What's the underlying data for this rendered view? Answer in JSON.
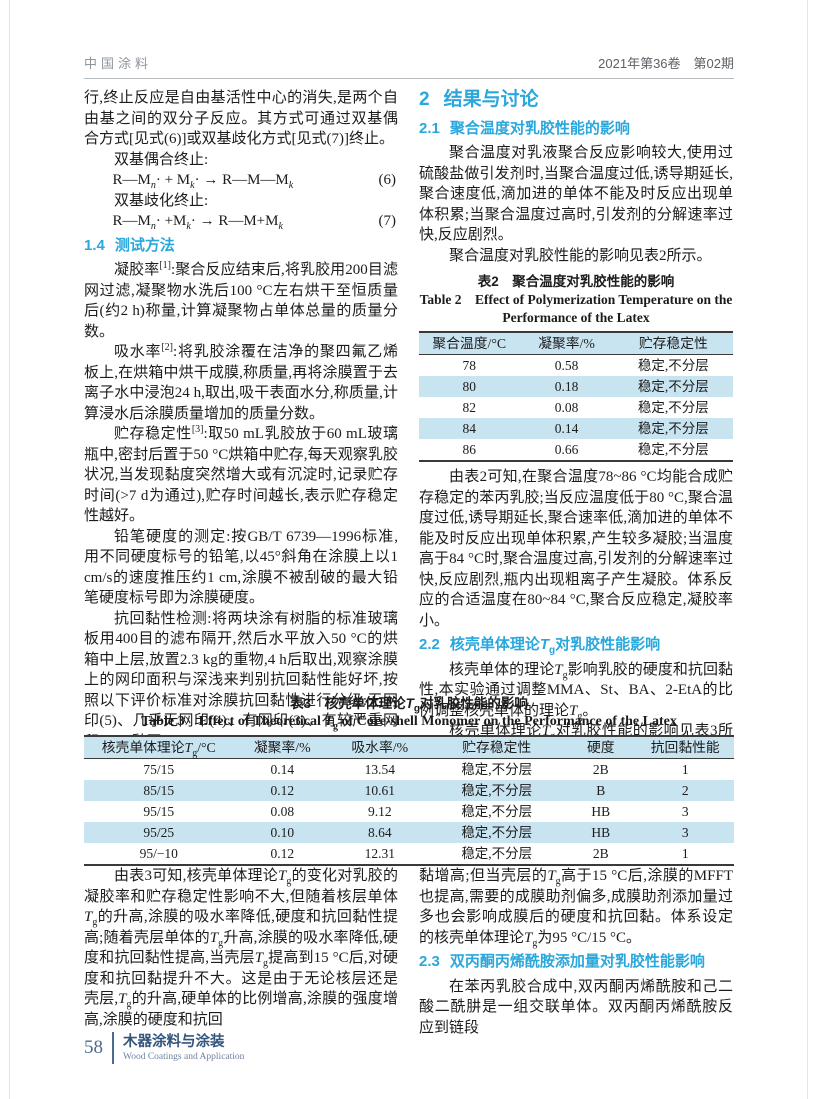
{
  "header": {
    "journal": "中国涂料",
    "issue": "2021年第36卷　第02期"
  },
  "left": {
    "p_cont": "行,终止反应是自由基活性中心的消失,是两个自由基之间的双分子反应。其方式可通过双基偶合方式[见式(6)]或双基歧化方式[见式(7)]终止。",
    "coupling_label": "双基偶合终止:",
    "eq6_body": "R—M<sub><i>n</i></sub>· + M<sub><i>k</i></sub>· → R—M—M<sub><i>k</i></sub>",
    "eq6_num": "(6)",
    "disprop_label": "双基歧化终止:",
    "eq7_body": "R—M<sub><i>n</i></sub>· +M<sub><i>k</i></sub>· → R—M+M<sub><i>k</i></sub>",
    "eq7_num": "(7)",
    "h_14_no": "1.4",
    "h_14": "测试方法",
    "p_gel": "凝胶率<sup>[1]</sup>:聚合反应结束后,将乳胶用200目滤网过滤,凝聚物水洗后100 °C左右烘干至恒质量后(约2 h)称量,计算凝聚物占单体总量的质量分数。",
    "p_water": "吸水率<sup>[2]</sup>:将乳胶涂覆在洁净的聚四氟乙烯板上,在烘箱中烘干成膜,称质量,再将涂膜置于去离子水中浸泡24 h,取出,吸干表面水分,称质量,计算浸水后涂膜质量增加的质量分数。",
    "p_storage": "贮存稳定性<sup>[3]</sup>:取50 mL乳胶放于60 mL玻璃瓶中,密封后置于50 °C烘箱中贮存,每天观察乳胶状况,当发现黏度突然增大或有沉淀时,记录贮存时间(&gt;7 d为通过),贮存时间越长,表示贮存稳定性越好。",
    "p_pencil": "铅笔硬度的测定:按GB/T 6739—1996标准,用不同硬度标号的铅笔,以45°斜角在涂膜上以1 cm/s的速度推压约1 cm,涂膜不被刮破的最大铅笔硬度标号即为涂膜硬度。",
    "p_antiblock": "抗回黏性检测:将两块涂有树脂的标准玻璃板用400目的滤布隔开,然后水平放入50 °C的烘箱中上层,放置2.3 kg的重物,4 h后取出,观察涂膜上的网印面积与深浅来判别抗回黏性能好坏,按照以下评价标准对涂膜抗回黏性进行分级:无网印(5)、几乎无网印(4)、有网印(3)、有较严重网印(2)、黏网(1)。"
  },
  "right": {
    "h2_no": "2",
    "h2": "结果与讨论",
    "h_21_no": "2.1",
    "h_21": "聚合温度对乳胶性能的影响",
    "p_21a": "聚合温度对乳液聚合反应影响较大,使用过硫酸盐做引发剂时,当聚合温度过低,诱导期延长,聚合速度低,滴加进的单体不能及时反应出现单体积累;当聚合温度过高时,引发剂的分解速率过快,反应剧烈。",
    "p_21b": "聚合温度对乳胶性能的影响见表2所示。",
    "p_21c": "由表2可知,在聚合温度78~86 °C均能合成贮存稳定的苯丙乳胶;当反应温度低于80 °C,聚合温度过低,诱导期延长,聚合速率低,滴加进的单体不能及时反应出现单体积累,产生较多凝胶;当温度高于84 °C时,聚合温度过高,引发剂的分解速率过快,反应剧烈,瓶内出现粗离子产生凝胶。体系反应的合适温度在80~84 °C,聚合反应稳定,凝胶率小。",
    "h_22_no": "2.2",
    "h_22": "核壳单体理论<i>T</i><sub>g</sub>对乳胶性能影响",
    "p_22a": "核壳单体的理论<i>T</i><sub>g</sub>影响乳胶的硬度和抗回黏性,本实验通过调整MMA、St、BA、2-EtA的比例调整核壳单体的理论<i>T</i><sub>g</sub>。",
    "p_22b": "核壳单体理论<i>T</i><sub>g</sub>对乳胶性能的影响见表3所示。"
  },
  "table2": {
    "title_cn": "表2　聚合温度对乳胶性能的影响",
    "title_en_1": "Table 2　Effect of Polymerization Temperature on the",
    "title_en_2": "Performance of the Latex",
    "headers": [
      "聚合温度/°C",
      "凝聚率/%",
      "贮存稳定性"
    ],
    "rows": [
      [
        "78",
        "0.58",
        "稳定,不分层"
      ],
      [
        "80",
        "0.18",
        "稳定,不分层"
      ],
      [
        "82",
        "0.08",
        "稳定,不分层"
      ],
      [
        "84",
        "0.14",
        "稳定,不分层"
      ],
      [
        "86",
        "0.66",
        "稳定,不分层"
      ]
    ]
  },
  "table3": {
    "title_cn": "表3　核壳单体理论<i>T</i><sub>g</sub>对乳胶性能的影响",
    "title_en": "Table 3　Effect of Theoretical <i>T</i><sub>g</sub> of Core-shell Monomer on the Performance of the Latex",
    "header_0": "核壳单体理论<i>T</i><sub>g</sub>/°C",
    "headers_rest": [
      "凝聚率/%",
      "吸水率/%",
      "贮存稳定性",
      "硬度",
      "抗回黏性能"
    ],
    "rows": [
      [
        "75/15",
        "0.14",
        "13.54",
        "稳定,不分层",
        "2B",
        "1"
      ],
      [
        "85/15",
        "0.12",
        "10.61",
        "稳定,不分层",
        "B",
        "2"
      ],
      [
        "95/15",
        "0.08",
        "9.12",
        "稳定,不分层",
        "HB",
        "3"
      ],
      [
        "95/25",
        "0.10",
        "8.64",
        "稳定,不分层",
        "HB",
        "3"
      ],
      [
        "95/−10",
        "0.12",
        "12.31",
        "稳定,不分层",
        "2B",
        "1"
      ]
    ]
  },
  "bottom": {
    "p_left": "由表3可知,核壳单体理论<i>T</i><sub>g</sub>的变化对乳胶的凝胶率和贮存稳定性影响不大,但随着核层单体<i>T</i><sub>g</sub>的升高,涂膜的吸水率降低,硬度和抗回黏性提高;随着壳层单体的<i>T</i><sub>g</sub>升高,涂膜的吸水率降低,硬度和抗回黏性提高,当壳层<i>T</i><sub>g</sub>提高到15 °C后,对硬度和抗回黏提升不大。这是由于无论核层还是壳层,<i>T</i><sub>g</sub>的升高,硬单体的比例增高,涂膜的强度增高,涂膜的硬度和抗回",
    "p_right_a": "黏增高;但当壳层的<i>T</i><sub>g</sub>高于15 °C后,涂膜的MFFT也提高,需要的成膜助剂偏多,成膜助剂添加量过多也会影响成膜后的硬度和抗回黏。体系设定的核壳单体理论<i>T</i><sub>g</sub>为95 °C/15 °C。",
    "h_23_no": "2.3",
    "h_23": "双丙酮丙烯酰胺添加量对乳胶性能影响",
    "p_right_b": "在苯丙乳胶合成中,双丙酮丙烯酰胺和己二酸二酰肼是一组交联单体。双丙酮丙烯酰胺反应到链段"
  },
  "footer": {
    "page_number": "58",
    "section_cn": "木器涂料与涂装",
    "section_en": "Wood Coatings and Application"
  }
}
